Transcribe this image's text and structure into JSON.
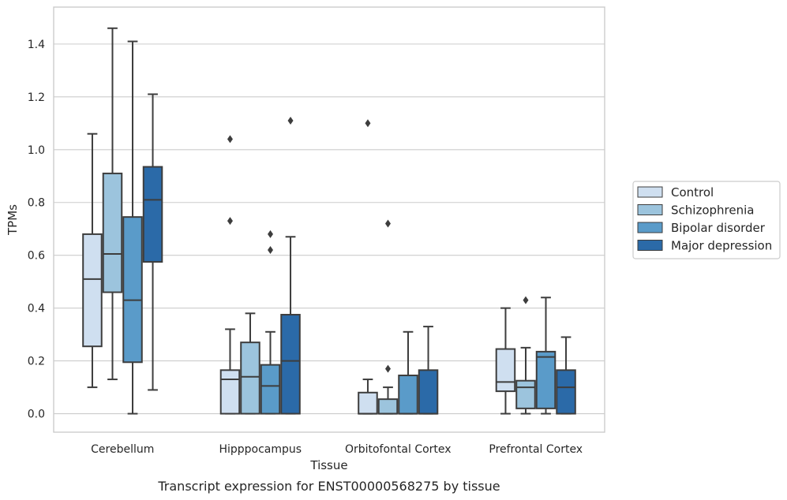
{
  "chart_data": {
    "type": "boxplot",
    "title": "",
    "caption": "Transcript expression for ENST00000568275 by tissue",
    "xlabel": "Tissue",
    "ylabel": "TPMs",
    "ylim": [
      -0.07,
      1.54
    ],
    "yticks": [
      "0.0",
      "0.2",
      "0.4",
      "0.6",
      "0.8",
      "1.0",
      "1.2",
      "1.4"
    ],
    "ytick_values": [
      0,
      0.2,
      0.4,
      0.6,
      0.8,
      1.0,
      1.2,
      1.4
    ],
    "grid": true,
    "legend_position": "right",
    "categories": [
      "Cerebellum",
      "Hipppocampus",
      "Orbitofontal Cortex",
      "Prefrontal Cortex"
    ],
    "series": [
      {
        "name": "Control",
        "color": "#cfdff0",
        "boxes": [
          {
            "whisker_low": 0.1,
            "q1": 0.255,
            "median": 0.51,
            "q3": 0.68,
            "whisker_high": 1.06,
            "outliers": []
          },
          {
            "whisker_low": 0.0,
            "q1": 0.0,
            "median": 0.13,
            "q3": 0.165,
            "whisker_high": 0.32,
            "outliers": [
              0.73,
              1.04
            ]
          },
          {
            "whisker_low": 0.0,
            "q1": 0.0,
            "median": 0.0,
            "q3": 0.08,
            "whisker_high": 0.13,
            "outliers": [
              1.1
            ]
          },
          {
            "whisker_low": 0.0,
            "q1": 0.085,
            "median": 0.12,
            "q3": 0.245,
            "whisker_high": 0.4,
            "outliers": []
          }
        ]
      },
      {
        "name": "Schizophrenia",
        "color": "#9cc4dd",
        "boxes": [
          {
            "whisker_low": 0.13,
            "q1": 0.46,
            "median": 0.605,
            "q3": 0.91,
            "whisker_high": 1.46,
            "outliers": []
          },
          {
            "whisker_low": 0.0,
            "q1": 0.0,
            "median": 0.14,
            "q3": 0.27,
            "whisker_high": 0.38,
            "outliers": []
          },
          {
            "whisker_low": 0.0,
            "q1": 0.0,
            "median": 0.0,
            "q3": 0.055,
            "whisker_high": 0.1,
            "outliers": [
              0.17,
              0.72
            ]
          },
          {
            "whisker_low": 0.0,
            "q1": 0.02,
            "median": 0.1,
            "q3": 0.125,
            "whisker_high": 0.25,
            "outliers": [
              0.43
            ]
          }
        ]
      },
      {
        "name": "Bipolar disorder",
        "color": "#5a9bc9",
        "boxes": [
          {
            "whisker_low": 0.0,
            "q1": 0.195,
            "median": 0.43,
            "q3": 0.745,
            "whisker_high": 1.41,
            "outliers": []
          },
          {
            "whisker_low": 0.0,
            "q1": 0.0,
            "median": 0.105,
            "q3": 0.185,
            "whisker_high": 0.31,
            "outliers": [
              0.62,
              0.68
            ]
          },
          {
            "whisker_low": 0.0,
            "q1": 0.0,
            "median": 0.0,
            "q3": 0.145,
            "whisker_high": 0.31,
            "outliers": []
          },
          {
            "whisker_low": 0.0,
            "q1": 0.02,
            "median": 0.215,
            "q3": 0.235,
            "whisker_high": 0.44,
            "outliers": []
          }
        ]
      },
      {
        "name": "Major depression",
        "color": "#2b6aa8",
        "boxes": [
          {
            "whisker_low": 0.09,
            "q1": 0.575,
            "median": 0.81,
            "q3": 0.935,
            "whisker_high": 1.21,
            "outliers": []
          },
          {
            "whisker_low": 0.0,
            "q1": 0.0,
            "median": 0.2,
            "q3": 0.375,
            "whisker_high": 0.67,
            "outliers": [
              1.11
            ]
          },
          {
            "whisker_low": 0.0,
            "q1": 0.0,
            "median": 0.0,
            "q3": 0.165,
            "whisker_high": 0.33,
            "outliers": []
          },
          {
            "whisker_low": 0.0,
            "q1": 0.0,
            "median": 0.1,
            "q3": 0.165,
            "whisker_high": 0.29,
            "outliers": []
          }
        ]
      }
    ]
  }
}
